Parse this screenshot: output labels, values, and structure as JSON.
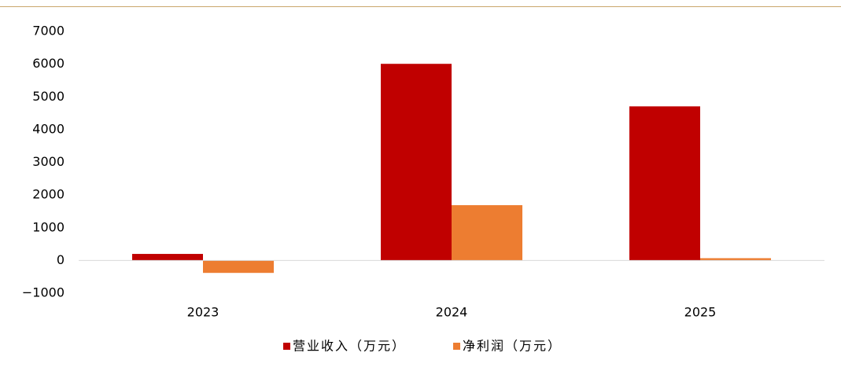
{
  "chart_data": {
    "type": "bar",
    "categories": [
      "2023",
      "2024",
      "2025"
    ],
    "series": [
      {
        "name": "营业收入（万元）",
        "color": "#c00000",
        "values": [
          200,
          6010,
          4710
        ]
      },
      {
        "name": "净利润（万元）",
        "color": "#ed7d31",
        "values": [
          -380,
          1690,
          70
        ]
      }
    ],
    "ylim": [
      -1000,
      7000
    ],
    "yticks": [
      {
        "value": -1000,
        "label": "−1000"
      },
      0,
      1000,
      2000,
      3000,
      4000,
      5000,
      6000,
      7000
    ],
    "grid": false,
    "legend": "bottom"
  }
}
